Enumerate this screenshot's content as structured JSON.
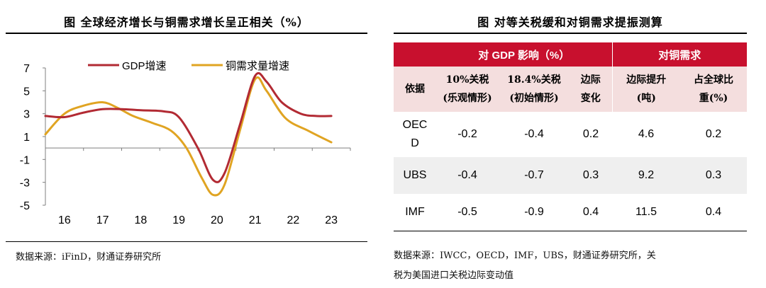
{
  "left": {
    "title": "图 全球经济增长与铜需求增长呈正相关（%）",
    "source": "数据来源：iFinD，财通证券研究所"
  },
  "right": {
    "title": "图 对等关税缓和对铜需求提振测算",
    "group_headers": [
      "对 GDP 影响（%）",
      "对铜需求"
    ],
    "basis_label": "依据",
    "col_headers": [
      [
        "10%关税",
        "(乐观情形)"
      ],
      [
        "18.4%关税",
        "(初始情形)"
      ],
      [
        "边际",
        "变化"
      ],
      [
        "边际提升",
        "(吨)"
      ],
      [
        "占全球比",
        "重(%)"
      ]
    ],
    "rows": [
      {
        "label": [
          "OEC",
          "D"
        ],
        "values": [
          "-0.2",
          "-0.4",
          "0.2",
          "4.6",
          "0.2"
        ]
      },
      {
        "label": [
          "UBS"
        ],
        "values": [
          "-0.4",
          "-0.7",
          "0.3",
          "9.2",
          "0.3"
        ]
      },
      {
        "label": [
          "IMF"
        ],
        "values": [
          "-0.5",
          "-0.9",
          "0.4",
          "11.5",
          "0.4"
        ]
      }
    ],
    "source_line1": "数据来源：IWCC，OECD，IMF，UBS，财通证券研究所，关",
    "source_line2": "税为美国进口关税边际变动值"
  },
  "colors": {
    "gdp": "#b22a33",
    "copper": "#e0a422",
    "header_red": "#c8102e",
    "header_pink": "#f4dede",
    "row_shade": "#efefef"
  },
  "chart_data": {
    "type": "line",
    "x_ticks": [
      "16",
      "17",
      "18",
      "19",
      "20",
      "21",
      "22",
      "23"
    ],
    "y_ticks": [
      "7",
      "5",
      "3",
      "1",
      "-1",
      "-3",
      "-5"
    ],
    "ylim": [
      -5,
      7
    ],
    "xlim": [
      15.5,
      23.5
    ],
    "legend_position": "top",
    "series": [
      {
        "name": "GDP增速",
        "color": "#b22a33",
        "points": [
          [
            15.5,
            2.8
          ],
          [
            16.0,
            2.7
          ],
          [
            16.5,
            3.1
          ],
          [
            17.0,
            3.4
          ],
          [
            17.5,
            3.4
          ],
          [
            18.0,
            3.3
          ],
          [
            18.6,
            3.2
          ],
          [
            19.0,
            2.7
          ],
          [
            19.5,
            0.0
          ],
          [
            19.9,
            -2.8
          ],
          [
            20.2,
            -2.2
          ],
          [
            20.6,
            2.0
          ],
          [
            21.0,
            6.3
          ],
          [
            21.3,
            5.8
          ],
          [
            21.7,
            4.0
          ],
          [
            22.2,
            3.0
          ],
          [
            22.6,
            2.8
          ],
          [
            23.0,
            2.8
          ]
        ]
      },
      {
        "name": "铜需求量增速",
        "color": "#e0a422",
        "points": [
          [
            15.5,
            1.2
          ],
          [
            16.0,
            3.0
          ],
          [
            16.5,
            3.7
          ],
          [
            17.0,
            4.0
          ],
          [
            17.4,
            3.5
          ],
          [
            17.8,
            2.8
          ],
          [
            18.3,
            2.2
          ],
          [
            18.8,
            1.5
          ],
          [
            19.2,
            0.0
          ],
          [
            19.6,
            -2.6
          ],
          [
            19.9,
            -4.1
          ],
          [
            20.2,
            -3.2
          ],
          [
            20.6,
            1.5
          ],
          [
            21.0,
            6.0
          ],
          [
            21.3,
            5.0
          ],
          [
            21.8,
            2.6
          ],
          [
            22.4,
            1.5
          ],
          [
            23.0,
            0.5
          ]
        ]
      }
    ]
  }
}
